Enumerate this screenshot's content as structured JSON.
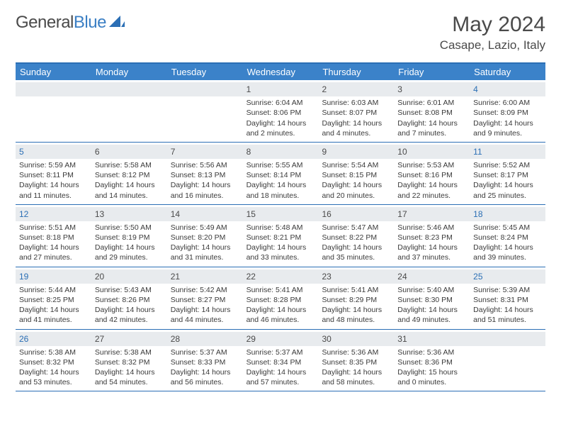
{
  "logo": {
    "text1": "General",
    "text2": "Blue"
  },
  "title": "May 2024",
  "location": "Casape, Lazio, Italy",
  "colors": {
    "header_bg": "#3b82c9",
    "border": "#2b6fb5",
    "daynum_bg": "#e8ebee",
    "text": "#3a3a3a",
    "weekend_num": "#2b6fb5"
  },
  "daysOfWeek": [
    "Sunday",
    "Monday",
    "Tuesday",
    "Wednesday",
    "Thursday",
    "Friday",
    "Saturday"
  ],
  "weeks": [
    [
      {
        "n": "",
        "body": ""
      },
      {
        "n": "",
        "body": ""
      },
      {
        "n": "",
        "body": ""
      },
      {
        "n": "1",
        "body": "Sunrise: 6:04 AM\nSunset: 8:06 PM\nDaylight: 14 hours and 2 minutes."
      },
      {
        "n": "2",
        "body": "Sunrise: 6:03 AM\nSunset: 8:07 PM\nDaylight: 14 hours and 4 minutes."
      },
      {
        "n": "3",
        "body": "Sunrise: 6:01 AM\nSunset: 8:08 PM\nDaylight: 14 hours and 7 minutes."
      },
      {
        "n": "4",
        "body": "Sunrise: 6:00 AM\nSunset: 8:09 PM\nDaylight: 14 hours and 9 minutes."
      }
    ],
    [
      {
        "n": "5",
        "body": "Sunrise: 5:59 AM\nSunset: 8:11 PM\nDaylight: 14 hours and 11 minutes."
      },
      {
        "n": "6",
        "body": "Sunrise: 5:58 AM\nSunset: 8:12 PM\nDaylight: 14 hours and 14 minutes."
      },
      {
        "n": "7",
        "body": "Sunrise: 5:56 AM\nSunset: 8:13 PM\nDaylight: 14 hours and 16 minutes."
      },
      {
        "n": "8",
        "body": "Sunrise: 5:55 AM\nSunset: 8:14 PM\nDaylight: 14 hours and 18 minutes."
      },
      {
        "n": "9",
        "body": "Sunrise: 5:54 AM\nSunset: 8:15 PM\nDaylight: 14 hours and 20 minutes."
      },
      {
        "n": "10",
        "body": "Sunrise: 5:53 AM\nSunset: 8:16 PM\nDaylight: 14 hours and 22 minutes."
      },
      {
        "n": "11",
        "body": "Sunrise: 5:52 AM\nSunset: 8:17 PM\nDaylight: 14 hours and 25 minutes."
      }
    ],
    [
      {
        "n": "12",
        "body": "Sunrise: 5:51 AM\nSunset: 8:18 PM\nDaylight: 14 hours and 27 minutes."
      },
      {
        "n": "13",
        "body": "Sunrise: 5:50 AM\nSunset: 8:19 PM\nDaylight: 14 hours and 29 minutes."
      },
      {
        "n": "14",
        "body": "Sunrise: 5:49 AM\nSunset: 8:20 PM\nDaylight: 14 hours and 31 minutes."
      },
      {
        "n": "15",
        "body": "Sunrise: 5:48 AM\nSunset: 8:21 PM\nDaylight: 14 hours and 33 minutes."
      },
      {
        "n": "16",
        "body": "Sunrise: 5:47 AM\nSunset: 8:22 PM\nDaylight: 14 hours and 35 minutes."
      },
      {
        "n": "17",
        "body": "Sunrise: 5:46 AM\nSunset: 8:23 PM\nDaylight: 14 hours and 37 minutes."
      },
      {
        "n": "18",
        "body": "Sunrise: 5:45 AM\nSunset: 8:24 PM\nDaylight: 14 hours and 39 minutes."
      }
    ],
    [
      {
        "n": "19",
        "body": "Sunrise: 5:44 AM\nSunset: 8:25 PM\nDaylight: 14 hours and 41 minutes."
      },
      {
        "n": "20",
        "body": "Sunrise: 5:43 AM\nSunset: 8:26 PM\nDaylight: 14 hours and 42 minutes."
      },
      {
        "n": "21",
        "body": "Sunrise: 5:42 AM\nSunset: 8:27 PM\nDaylight: 14 hours and 44 minutes."
      },
      {
        "n": "22",
        "body": "Sunrise: 5:41 AM\nSunset: 8:28 PM\nDaylight: 14 hours and 46 minutes."
      },
      {
        "n": "23",
        "body": "Sunrise: 5:41 AM\nSunset: 8:29 PM\nDaylight: 14 hours and 48 minutes."
      },
      {
        "n": "24",
        "body": "Sunrise: 5:40 AM\nSunset: 8:30 PM\nDaylight: 14 hours and 49 minutes."
      },
      {
        "n": "25",
        "body": "Sunrise: 5:39 AM\nSunset: 8:31 PM\nDaylight: 14 hours and 51 minutes."
      }
    ],
    [
      {
        "n": "26",
        "body": "Sunrise: 5:38 AM\nSunset: 8:32 PM\nDaylight: 14 hours and 53 minutes."
      },
      {
        "n": "27",
        "body": "Sunrise: 5:38 AM\nSunset: 8:32 PM\nDaylight: 14 hours and 54 minutes."
      },
      {
        "n": "28",
        "body": "Sunrise: 5:37 AM\nSunset: 8:33 PM\nDaylight: 14 hours and 56 minutes."
      },
      {
        "n": "29",
        "body": "Sunrise: 5:37 AM\nSunset: 8:34 PM\nDaylight: 14 hours and 57 minutes."
      },
      {
        "n": "30",
        "body": "Sunrise: 5:36 AM\nSunset: 8:35 PM\nDaylight: 14 hours and 58 minutes."
      },
      {
        "n": "31",
        "body": "Sunrise: 5:36 AM\nSunset: 8:36 PM\nDaylight: 15 hours and 0 minutes."
      },
      {
        "n": "",
        "body": ""
      }
    ]
  ]
}
